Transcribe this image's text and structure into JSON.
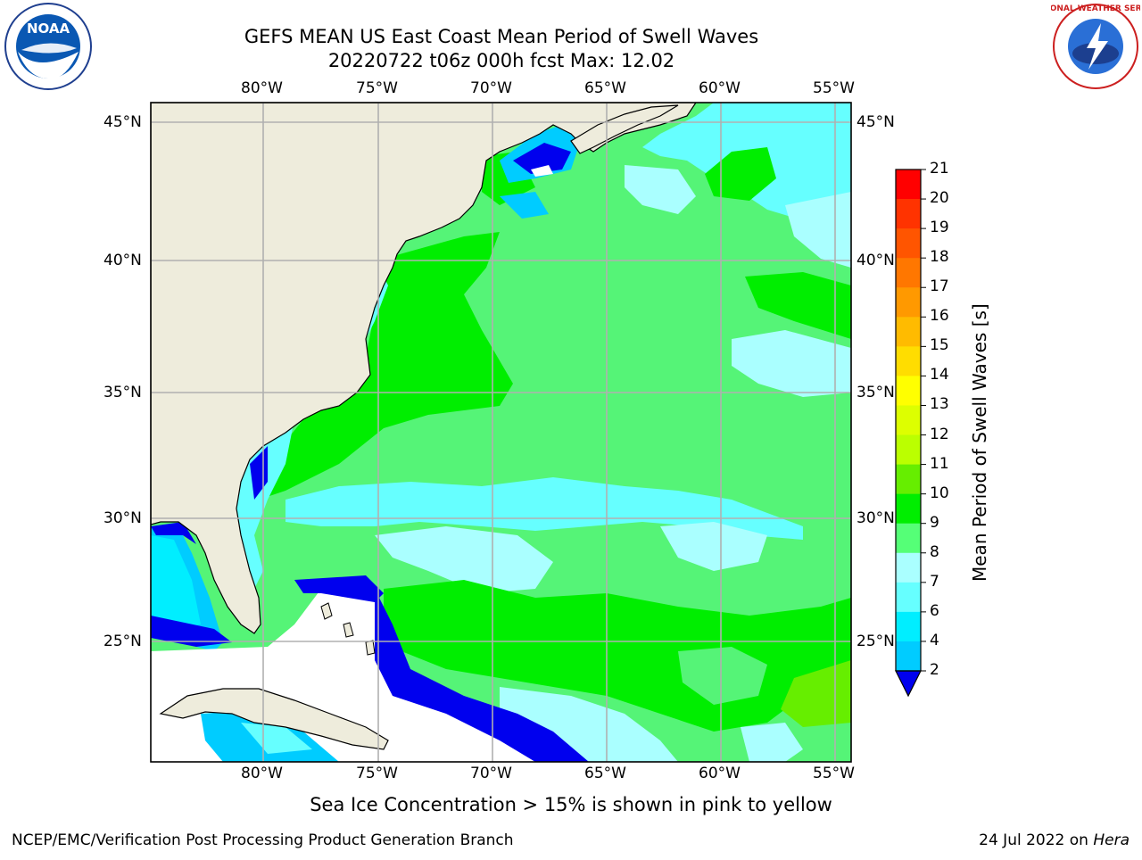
{
  "header": {
    "title_line1": "GEFS MEAN US East Coast Mean Period of Swell Waves",
    "title_line2": "20220722 t06z 000h fcst   Max: 12.02"
  },
  "logos": {
    "left": {
      "icon": "noaa-logo",
      "text": "NOAA"
    },
    "right": {
      "icon": "nws-logo",
      "text": "NATIONAL WEATHER SERVICE"
    }
  },
  "map": {
    "lon_labels": [
      "80°W",
      "75°W",
      "70°W",
      "65°W",
      "60°W",
      "55°W"
    ],
    "lat_labels": [
      "45°N",
      "40°N",
      "35°N",
      "30°N",
      "25°N"
    ],
    "land_color": "#eeecdc",
    "coast_color": "#000000",
    "grid_color": "#b0b0b0"
  },
  "colorbar": {
    "label": "Mean Period of Swell Waves [s]",
    "ticks": [
      "21",
      "20",
      "19",
      "18",
      "17",
      "16",
      "15",
      "14",
      "13",
      "12",
      "11",
      "10",
      "9",
      "8",
      "7",
      "6",
      "4",
      "2"
    ],
    "colors_top_to_bottom": [
      "#ff0000",
      "#ff3300",
      "#ff5500",
      "#ff7700",
      "#ff9900",
      "#ffbb00",
      "#ffdd00",
      "#ffff00",
      "#ddff00",
      "#bbff00",
      "#66ee00",
      "#00ee00",
      "#55ff77",
      "#aaffff",
      "#66ffff",
      "#00eeff",
      "#00ccff",
      "#0077ff"
    ],
    "under_color": "#0000ee"
  },
  "footer": {
    "note": "Sea Ice Concentration > 15% is shown in pink to yellow",
    "producer": "NCEP/EMC/Verification Post Processing Product Generation Branch",
    "date": "24 Jul 2022 on",
    "machine": "Hera"
  }
}
